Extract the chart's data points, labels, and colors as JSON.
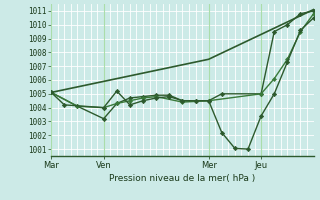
{
  "bg_color": "#cceae7",
  "plot_bg_color": "#cceae7",
  "grid_color": "#ffffff",
  "line_dark": "#2d5a2d",
  "line_mid": "#3a7a3a",
  "xlabel": "Pression niveau de la mer( hPa )",
  "ylim": [
    1000.5,
    1011.5
  ],
  "yticks": [
    1001,
    1002,
    1003,
    1004,
    1005,
    1006,
    1007,
    1008,
    1009,
    1010,
    1011
  ],
  "xtick_labels": [
    "Mar",
    "Ven",
    "Mer",
    "Jeu"
  ],
  "xtick_positions": [
    0,
    0.2,
    0.6,
    0.8
  ],
  "xmin": 0.0,
  "xmax": 1.0,
  "vlines": [
    0.0,
    0.2,
    0.6,
    0.8
  ],
  "vline_color": "#aaddaa",
  "lines": [
    {
      "x": [
        0.0,
        0.05,
        0.2,
        0.25,
        0.3,
        0.35,
        0.4,
        0.45,
        0.5,
        0.55,
        0.6,
        0.65,
        0.7,
        0.75,
        0.8,
        0.85,
        0.9,
        0.95,
        1.0
      ],
      "y": [
        1005.1,
        1004.2,
        1004.0,
        1005.2,
        1004.2,
        1004.5,
        1004.7,
        1004.8,
        1004.5,
        1004.5,
        1004.5,
        1002.2,
        1001.05,
        1001.0,
        1003.4,
        1005.0,
        1007.3,
        1009.6,
        1010.5
      ],
      "color": "#2d5a2d",
      "lw": 1.0,
      "marker": "D",
      "ms": 2.2,
      "zorder": 4
    },
    {
      "x": [
        0.0,
        0.1,
        0.2,
        0.25,
        0.3,
        0.35,
        0.4,
        0.45,
        0.5,
        0.55,
        0.6,
        0.65,
        0.8,
        0.85,
        0.9,
        0.95,
        1.0
      ],
      "y": [
        1005.1,
        1004.1,
        1003.2,
        1004.3,
        1004.7,
        1004.8,
        1004.9,
        1004.9,
        1004.5,
        1004.5,
        1004.5,
        1005.0,
        1005.0,
        1009.5,
        1010.0,
        1010.8,
        1011.0
      ],
      "color": "#2d5a2d",
      "lw": 1.0,
      "marker": "D",
      "ms": 2.2,
      "zorder": 3
    },
    {
      "x": [
        0.0,
        0.1,
        0.2,
        0.25,
        0.3,
        0.35,
        0.4,
        0.5,
        0.6,
        0.8,
        0.85,
        0.9,
        0.95,
        1.0
      ],
      "y": [
        1005.1,
        1004.1,
        1004.0,
        1004.3,
        1004.5,
        1004.7,
        1004.8,
        1004.4,
        1004.5,
        1005.0,
        1006.1,
        1007.5,
        1009.5,
        1010.8
      ],
      "color": "#3a7a3a",
      "lw": 1.0,
      "marker": "D",
      "ms": 2.0,
      "zorder": 3
    },
    {
      "x": [
        0.0,
        0.6,
        1.0
      ],
      "y": [
        1005.1,
        1007.5,
        1011.1
      ],
      "color": "#2d5a2d",
      "lw": 1.2,
      "marker": null,
      "ms": 0,
      "zorder": 2
    }
  ]
}
